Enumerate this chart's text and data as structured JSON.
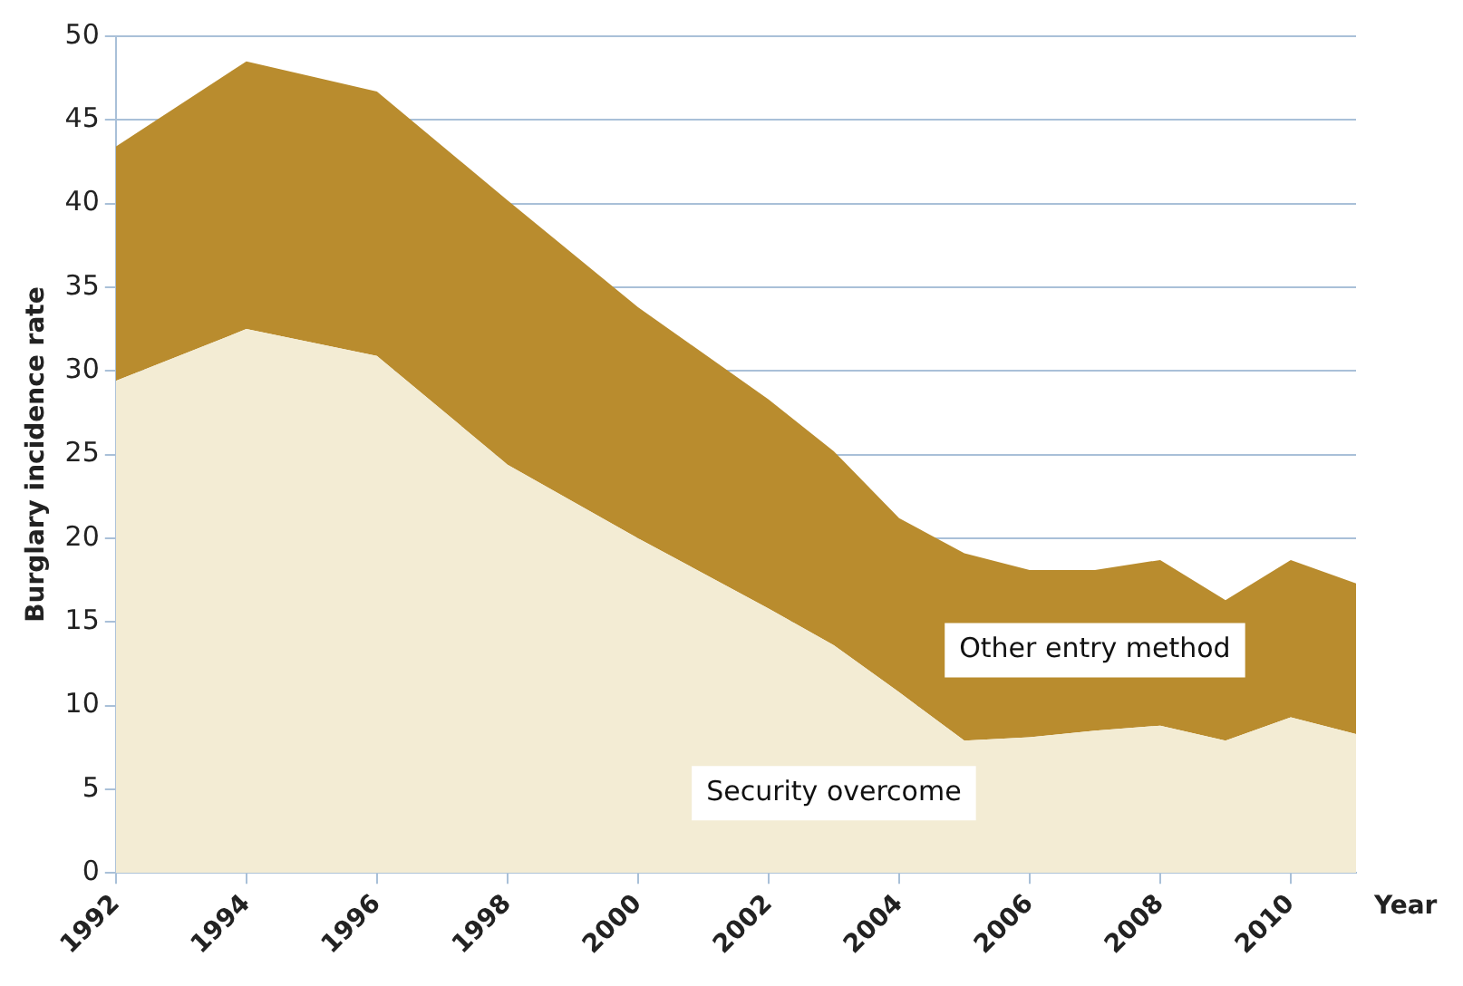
{
  "chart_data": {
    "type": "area",
    "stacked": true,
    "xlabel": "Year",
    "ylabel": "Burglary incidence rate",
    "x": [
      1992,
      1994,
      1996,
      1998,
      2000,
      2002,
      2003,
      2004,
      2005,
      2006,
      2007,
      2008,
      2009,
      2010,
      2011
    ],
    "series": [
      {
        "name": "Security overcome",
        "color": "#f3ecd4",
        "values": [
          29.4,
          32.5,
          30.9,
          24.4,
          20.0,
          15.8,
          13.6,
          10.8,
          7.9,
          8.1,
          8.5,
          8.8,
          7.9,
          9.3,
          8.3
        ]
      },
      {
        "name": "Other entry method",
        "color": "#b98c2e",
        "values": [
          14.0,
          16.0,
          15.8,
          15.8,
          13.8,
          12.5,
          11.6,
          10.4,
          11.2,
          10.0,
          9.6,
          9.9,
          8.4,
          9.4,
          9.0
        ]
      }
    ],
    "xlim": [
      1992,
      2011
    ],
    "xticks": [
      1992,
      1994,
      1996,
      1998,
      2000,
      2002,
      2004,
      2006,
      2008,
      2010
    ],
    "ylim": [
      0,
      50
    ],
    "yticks": [
      0,
      5,
      10,
      15,
      20,
      25,
      30,
      35,
      40,
      45,
      50
    ],
    "grid": "y",
    "legend": false
  }
}
